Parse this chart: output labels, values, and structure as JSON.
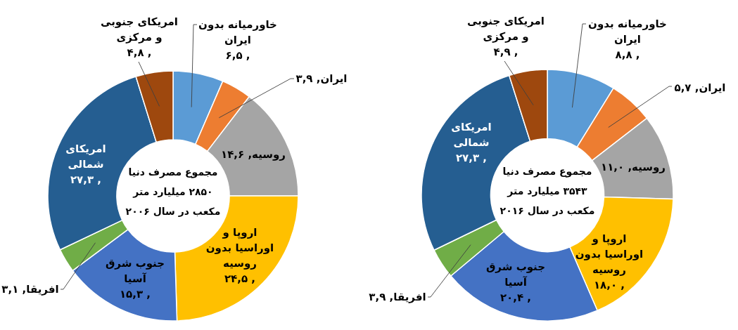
{
  "chart_data": [
    {
      "type": "donut",
      "title": "مجموع مصرف دنیا ۲۸۵۰ میلیارد متر مکعب در سال ۲۰۰۶",
      "categories": [
        "خاورمیانه بدون ایران",
        "ایران",
        "روسیه",
        "اروپا و اوراسیا بدون روسیه",
        "جنوب شرق آسیا",
        "افریقا",
        "امریکای شمالی",
        "امریکای جنوبی و مرکزی"
      ],
      "values": [
        6.5,
        3.9,
        14.6,
        24.5,
        15.3,
        3.1,
        27.3,
        4.8
      ],
      "value_labels": [
        ", ۶,۵",
        ", ۳,۹",
        ", ۱۴,۶",
        ", ۲۴,۵",
        ", ۱۵,۳",
        ", ۳,۱",
        ", ۲۷,۳",
        ", ۴,۸"
      ],
      "colors": [
        "#5b9bd5",
        "#ed7d31",
        "#a5a5a5",
        "#ffc000",
        "#4472c4",
        "#70ad47",
        "#255e91",
        "#9e480e"
      ]
    },
    {
      "type": "donut",
      "title": "مجموع مصرف دنیا ۳۵۴۳ میلیارد متر مکعب در سال ۲۰۱۶",
      "categories": [
        "خاورمیانه بدون ایران",
        "ایران",
        "روسیه",
        "اروپا و اوراسیا بدون روسیه",
        "جنوب شرق آسیا",
        "افریقا",
        "امریکای شمالی",
        "امریکای جنوبی و مرکزی"
      ],
      "values": [
        8.8,
        5.7,
        11.0,
        18.0,
        20.4,
        3.9,
        27.3,
        4.9
      ],
      "value_labels": [
        ", ۸,۸",
        ", ۵,۷",
        ", ۱۱,۰",
        ", ۱۸,۰",
        ", ۲۰,۴",
        ", ۳,۹",
        ", ۲۷,۳",
        ", ۴,۹"
      ],
      "colors": [
        "#5b9bd5",
        "#ed7d31",
        "#a5a5a5",
        "#ffc000",
        "#4472c4",
        "#70ad47",
        "#255e91",
        "#9e480e"
      ]
    }
  ]
}
